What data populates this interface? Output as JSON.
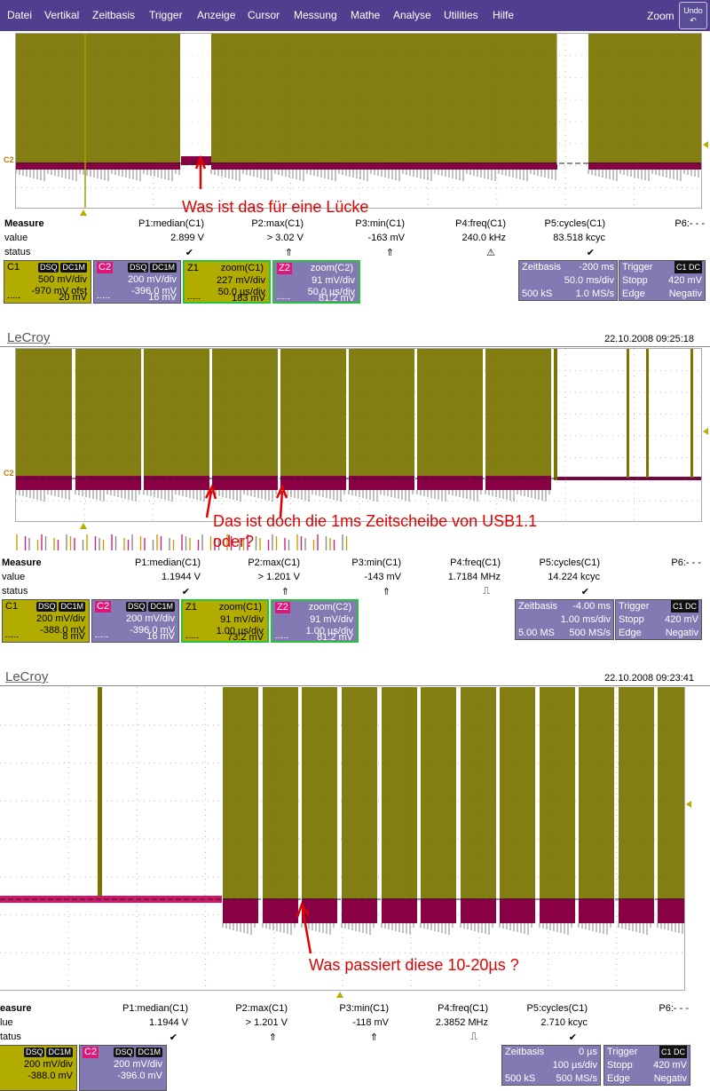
{
  "menu": {
    "items": [
      "Datei",
      "Vertikal",
      "Zeitbasis",
      "Trigger",
      "Anzeige",
      "Cursor",
      "Messung",
      "Mathe",
      "Analyse",
      "Utilities",
      "Hilfe"
    ],
    "zoom": "Zoom",
    "undo": "Undo"
  },
  "colors": {
    "menubar": "#4f3f8e",
    "trace_yellow": "#7a7400",
    "trace_magenta": "#8a0044",
    "annotation": "#e30000",
    "tile_yellow": "#b3ac00",
    "tile_purple": "#847ab3"
  },
  "panel1": {
    "annotation": "Was ist das für eine Lücke",
    "channel_marker": "C2",
    "measure": {
      "labels": [
        "Measure",
        "value",
        "status"
      ],
      "params": [
        {
          "name": "P1:median(C1)",
          "value": "2.899 V",
          "status": "✔"
        },
        {
          "name": "P2:max(C1)",
          "value": "> 3.02 V",
          "status": "⇑"
        },
        {
          "name": "P3:min(C1)",
          "value": "-163 mV",
          "status": "⇑"
        },
        {
          "name": "P4:freq(C1)",
          "value": "240.0 kHz",
          "status": "⚠"
        },
        {
          "name": "P5:cycles(C1)",
          "value": "83.518 kcyc",
          "status": "✔"
        },
        {
          "name": "P6:- - -",
          "value": "",
          "status": ""
        }
      ]
    },
    "tiles": [
      {
        "name": "C1",
        "badge1": "DSQ",
        "badge2": "DC1M",
        "l1": "500 mV/div",
        "l2": "-970 mV ofst",
        "foot_l": "-·-·-",
        "foot_r": "20 mV"
      },
      {
        "name": "C2",
        "badge1": "DSQ",
        "badge2": "DC1M",
        "l1": "200 mV/div",
        "l2": "-396.0 mV",
        "foot_l": "-·-·-",
        "foot_r": "16 mV"
      },
      {
        "name": "Z1",
        "badge1": "",
        "badge2": "zoom(C1)",
        "l1": "227 mV/div",
        "l2": "50.0 µs/div",
        "foot_l": "-·-·-",
        "foot_r": "183 mV"
      },
      {
        "name": "Z2",
        "badge1": "",
        "badge2": "zoom(C2)",
        "l1": "91 mV/div",
        "l2": "50.0 µs/div",
        "foot_l": "-·-·-",
        "foot_r": "81.2 mV"
      }
    ],
    "timebase": {
      "label": "Zeitbasis",
      "offset": "-200 ms",
      "div": "50.0 ms/div",
      "samples": "500 kS",
      "rate": "1.0 MS/s"
    },
    "trigger": {
      "label": "Trigger",
      "badges": "C1 DC",
      "mode": "Stopp",
      "level": "420 mV",
      "type": "Edge",
      "slope": "Negativ"
    }
  },
  "panel2": {
    "brand": "LeCroy",
    "timestamp": "22.10.2008 09:25:18",
    "annotation_line1": "Das ist doch die 1ms Zeitscheibe von USB1.1",
    "annotation_line2": "oder?",
    "channel_marker": "C2",
    "measure": {
      "labels": [
        "Measure",
        "value",
        "status"
      ],
      "params": [
        {
          "name": "P1:median(C1)",
          "value": "1.1944 V",
          "status": "✔"
        },
        {
          "name": "P2:max(C1)",
          "value": "> 1.201 V",
          "status": "⇑"
        },
        {
          "name": "P3:min(C1)",
          "value": "-143 mV",
          "status": "⇑"
        },
        {
          "name": "P4:freq(C1)",
          "value": "1.7184 MHz",
          "status": "⎍"
        },
        {
          "name": "P5:cycles(C1)",
          "value": "14.224 kcyc",
          "status": "✔"
        },
        {
          "name": "P6:- - -",
          "value": "",
          "status": ""
        }
      ]
    },
    "tiles": [
      {
        "name": "C1",
        "badge1": "DSQ",
        "badge2": "DC1M",
        "l1": "200 mV/div",
        "l2": "-388.0 mV",
        "foot_l": "-·-·-",
        "foot_r": "8 mV"
      },
      {
        "name": "C2",
        "badge1": "DSQ",
        "badge2": "DC1M",
        "l1": "200 mV/div",
        "l2": "-396.0 mV",
        "foot_l": "-·-·-",
        "foot_r": "16 mV"
      },
      {
        "name": "Z1",
        "badge1": "",
        "badge2": "zoom(C1)",
        "l1": "91 mV/div",
        "l2": "1.00 µs/div",
        "foot_l": "-·-·-",
        "foot_r": "73.2 mV"
      },
      {
        "name": "Z2",
        "badge1": "",
        "badge2": "zoom(C2)",
        "l1": "91 mV/div",
        "l2": "1.00 µs/div",
        "foot_l": "-·-·-",
        "foot_r": "81.2 mV"
      }
    ],
    "timebase": {
      "label": "Zeitbasis",
      "offset": "-4.00 ms",
      "div": "1.00 ms/div",
      "samples": "5.00 MS",
      "rate": "500 MS/s"
    },
    "trigger": {
      "label": "Trigger",
      "badges": "C1 DC",
      "mode": "Stopp",
      "level": "420 mV",
      "type": "Edge",
      "slope": "Negativ"
    }
  },
  "panel3": {
    "brand": "LeCroy",
    "timestamp": "22.10.2008 09:23:41",
    "annotation": "Was passiert diese 10-20µs ?",
    "measure": {
      "labels": [
        "easure",
        "lue",
        "tatus"
      ],
      "params": [
        {
          "name": "P1:median(C1)",
          "value": "1.1944 V",
          "status": "✔"
        },
        {
          "name": "P2:max(C1)",
          "value": "> 1.201 V",
          "status": "⇑"
        },
        {
          "name": "P3:min(C1)",
          "value": "-118 mV",
          "status": "⇑"
        },
        {
          "name": "P4:freq(C1)",
          "value": "2.3852 MHz",
          "status": "⎍"
        },
        {
          "name": "P5:cycles(C1)",
          "value": "2.710 kcyc",
          "status": "✔"
        },
        {
          "name": "P6:- - -",
          "value": "",
          "status": ""
        }
      ]
    },
    "tiles": [
      {
        "name": "1",
        "badge1": "DSQ",
        "badge2": "DC1M",
        "l1": "200 mV/div",
        "l2": "-388.0 mV"
      },
      {
        "name": "C2",
        "badge1": "DSQ",
        "badge2": "DC1M",
        "l1": "200 mV/div",
        "l2": "-396.0 mV"
      }
    ],
    "timebase": {
      "label": "Zeitbasis",
      "offset": "0 µs",
      "div": "100 µs/div",
      "samples": "500 kS",
      "rate": "500 MS/s"
    },
    "trigger": {
      "label": "Trigger",
      "badges": "C1 DC",
      "mode": "Stopp",
      "level": "420 mV",
      "type": "Edge",
      "slope": "Negativ"
    }
  }
}
